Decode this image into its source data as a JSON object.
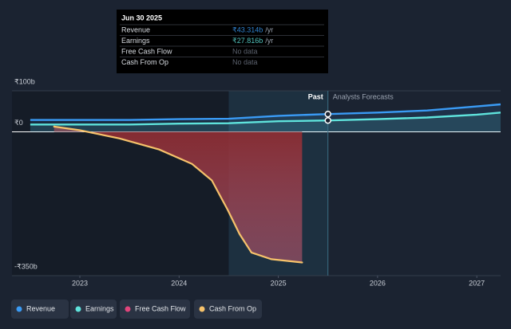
{
  "chart_data": {
    "type": "line",
    "ylim": [
      -350,
      100
    ],
    "yticks": [
      {
        "value": 100,
        "label": "₹100b"
      },
      {
        "value": 0,
        "label": "₹0"
      },
      {
        "value": -350,
        "label": "-₹350b"
      }
    ],
    "xlim": [
      2022.316,
      2027.24
    ],
    "xticks": [
      2023,
      2024,
      2025,
      2026,
      2027
    ],
    "annotations": {
      "past": "Past",
      "forecast": "Analysts Forecasts"
    },
    "series": [
      {
        "name": "Revenue",
        "color": "#3a9bf5",
        "x": [
          2022.5,
          2023,
          2023.5,
          2024,
          2024.5,
          2025,
          2025.5,
          2026,
          2026.5,
          2027,
          2027.24
        ],
        "values": [
          29,
          29,
          29,
          31,
          32,
          39,
          43.314,
          47,
          52,
          62,
          67
        ]
      },
      {
        "name": "Earnings",
        "color": "#5fe3dc",
        "x": [
          2022.5,
          2023,
          2023.5,
          2024,
          2024.5,
          2025,
          2025.5,
          2026,
          2026.5,
          2027,
          2027.24
        ],
        "values": [
          18,
          18,
          18,
          20,
          21,
          26,
          27.816,
          31,
          35,
          42,
          47
        ]
      },
      {
        "name": "Free Cash Flow",
        "color": "#e0457b",
        "x": [
          2022.74,
          2023,
          2023.4,
          2023.8,
          2024.13,
          2024.33,
          2024.49,
          2024.61,
          2024.73,
          2024.93,
          2025.24
        ],
        "values": [
          13,
          4,
          -16,
          -43,
          -78,
          -118,
          -190,
          -249,
          -294,
          -310,
          -318
        ]
      },
      {
        "name": "Cash From Op",
        "color": "#f6c26b",
        "x": [
          2022.74,
          2023,
          2023.4,
          2023.8,
          2024.13,
          2024.33,
          2024.49,
          2024.61,
          2024.73,
          2024.93,
          2025.24
        ],
        "values": [
          13,
          4,
          -16,
          -43,
          -78,
          -118,
          -190,
          -249,
          -294,
          -310,
          -318
        ]
      }
    ],
    "tooltip": {
      "date": "Jun 30 2025",
      "rows": [
        {
          "name": "Revenue",
          "value": 43.314,
          "value_label": "₹43.314b",
          "unit": "/yr"
        },
        {
          "name": "Earnings",
          "value": 27.816,
          "value_label": "₹27.816b",
          "unit": "/yr"
        },
        {
          "name": "Free Cash Flow",
          "value_label": "No data"
        },
        {
          "name": "Cash From Op",
          "value_label": "No data"
        }
      ]
    }
  }
}
